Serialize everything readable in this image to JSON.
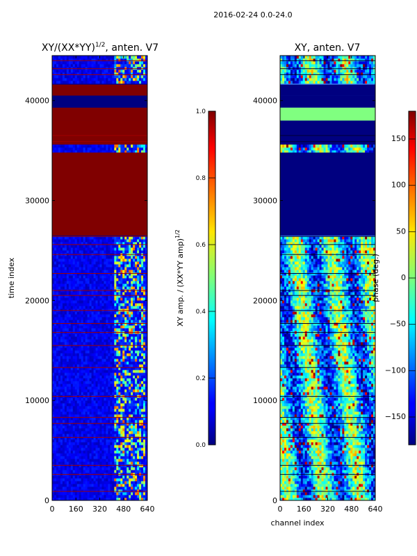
{
  "figure": {
    "suptitle": "2016-02-24 0.0-24.0"
  },
  "chart_data": [
    {
      "type": "heatmap",
      "title": "XY/(XX*YY)",
      "title_exponent": "1/2",
      "title_suffix": ", anten. V7",
      "xlabel": "",
      "ylabel": "time index",
      "xlim": [
        0,
        640
      ],
      "ylim": [
        0,
        44500
      ],
      "xticks": [
        0,
        160,
        320,
        480,
        640
      ],
      "yticks": [
        0,
        10000,
        20000,
        30000,
        40000
      ],
      "colormap": "jet",
      "colorbar": {
        "label": "XY amp. / (XX*YY amp)",
        "label_exponent": "1/2",
        "range": [
          0.0,
          1.0
        ],
        "ticks": [
          0.0,
          0.2,
          0.4,
          0.6,
          0.8,
          1.0
        ],
        "tick_labels": [
          "0.0",
          "0.2",
          "0.4",
          "0.6",
          "0.8",
          "1.0"
        ]
      },
      "dominant_bands": [
        {
          "y_start": 26500,
          "y_end": 34800,
          "value": 1.0
        },
        {
          "y_start": 35600,
          "y_end": 38000,
          "value": 1.0
        },
        {
          "y_start": 38000,
          "y_end": 39300,
          "value": 1.0
        },
        {
          "y_start": 39300,
          "y_end": 40500,
          "value": 0.0
        },
        {
          "y_start": 40500,
          "y_end": 41600,
          "value": 1.0
        }
      ]
    },
    {
      "type": "heatmap",
      "title": "XY, anten. V7",
      "xlabel": "channel index",
      "ylabel": "",
      "xlim": [
        0,
        640
      ],
      "ylim": [
        0,
        44500
      ],
      "xticks": [
        0,
        160,
        320,
        480,
        640
      ],
      "yticks": [
        0,
        10000,
        20000,
        30000,
        40000
      ],
      "colormap": "jet",
      "colorbar": {
        "label": "phase (deg.)",
        "range": [
          -180,
          180
        ],
        "ticks": [
          -150,
          -100,
          -50,
          0,
          50,
          100,
          150
        ],
        "tick_labels": [
          "−150",
          "−100",
          "−50",
          "0",
          "50",
          "100",
          "150"
        ]
      },
      "dominant_bands": [
        {
          "y_start": 26500,
          "y_end": 34800,
          "value": -180
        },
        {
          "y_start": 35600,
          "y_end": 38000,
          "value": -180
        },
        {
          "y_start": 38000,
          "y_end": 39300,
          "value": 0
        },
        {
          "y_start": 39300,
          "y_end": 40500,
          "value": -180
        },
        {
          "y_start": 40500,
          "y_end": 41600,
          "value": -180
        }
      ]
    }
  ]
}
